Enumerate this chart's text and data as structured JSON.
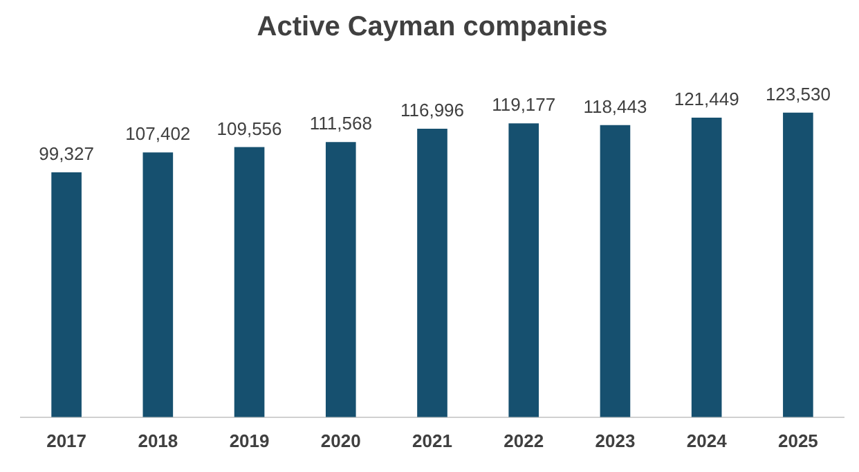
{
  "chart_data": {
    "type": "bar",
    "title": "Active Cayman companies",
    "categories": [
      "2017",
      "2018",
      "2019",
      "2020",
      "2021",
      "2022",
      "2023",
      "2024",
      "2025"
    ],
    "values": [
      99327,
      107402,
      109556,
      111568,
      116996,
      119177,
      118443,
      121449,
      123530
    ],
    "color": "#16506f",
    "value_labels": [
      "99,327",
      "107,402",
      "109,556",
      "111,568",
      "116,996",
      "119,177",
      "118,443",
      "121,449",
      "123,530"
    ],
    "grid": false,
    "legend": false
  }
}
